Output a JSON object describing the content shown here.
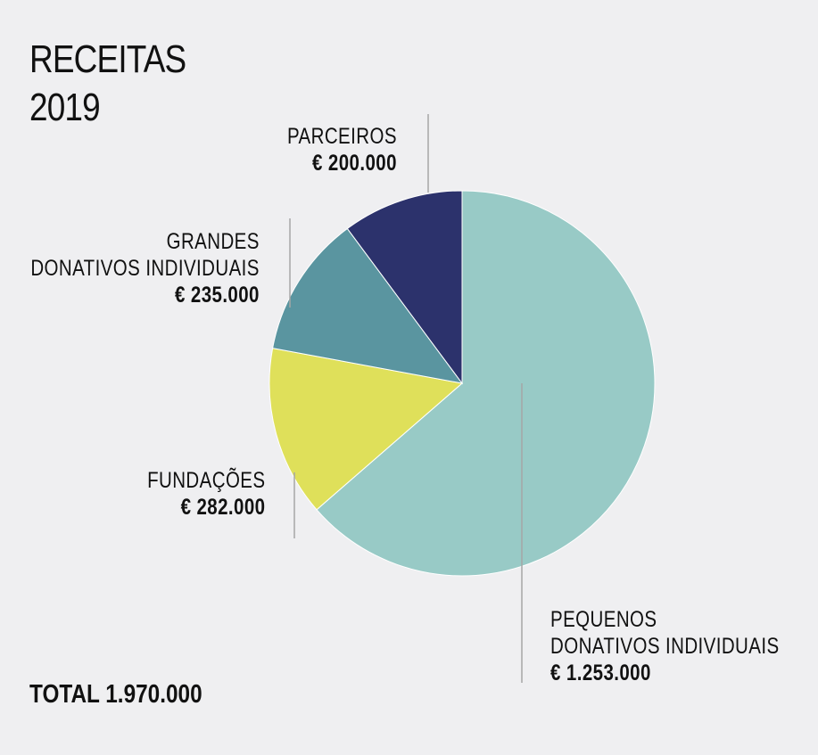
{
  "title": {
    "line1": "RECEITAS",
    "line2": "2019"
  },
  "total_label": "TOTAL 1.970.000",
  "chart_data": {
    "type": "pie",
    "title": "RECEITAS 2019",
    "slices": [
      {
        "key": "pequenos",
        "lines": [
          "PEQUENOS",
          "DONATIVOS INDIVIDUAIS"
        ],
        "value": 1253000,
        "value_label": "€ 1.253.000",
        "color": "#98cac6"
      },
      {
        "key": "fundacoes",
        "lines": [
          "FUNDAÇÕES"
        ],
        "value": 282000,
        "value_label": "€ 282.000",
        "color": "#dfe05a"
      },
      {
        "key": "grandes",
        "lines": [
          "GRANDES",
          "DONATIVOS INDIVIDUAIS"
        ],
        "value": 235000,
        "value_label": "€ 235.000",
        "color": "#5a95a0"
      },
      {
        "key": "parceiros",
        "lines": [
          "PARCEIROS"
        ],
        "value": 200000,
        "value_label": "€ 200.000",
        "color": "#2c326c"
      }
    ],
    "total": 1970000,
    "start_angle": "12 o'clock",
    "direction": "clockwise",
    "separator_color": "#ffffff",
    "leader_line_color": "#a6a6a6"
  }
}
